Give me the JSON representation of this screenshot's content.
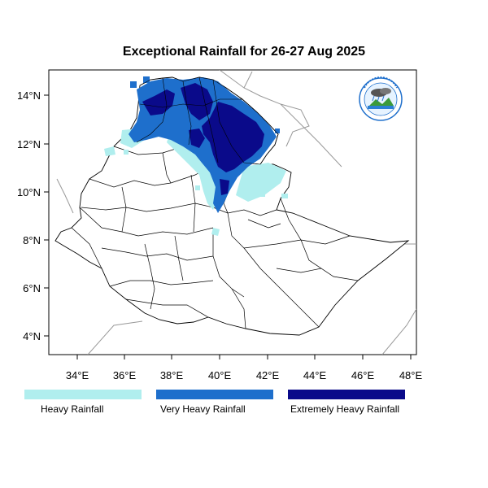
{
  "title": "Exceptional Rainfall for 26-27 Aug 2025",
  "axes": {
    "x_ticks": [
      "34°E",
      "36°E",
      "38°E",
      "40°E",
      "42°E",
      "44°E",
      "46°E",
      "48°E"
    ],
    "y_ticks": [
      "14°N",
      "12°N",
      "10°N",
      "8°N",
      "6°N",
      "4°N"
    ],
    "lon_range": [
      32.8,
      48.2
    ],
    "lat_range": [
      3.3,
      15.0
    ]
  },
  "legend": [
    {
      "label": "Heavy Rainfall",
      "color": "#b0eeee"
    },
    {
      "label": "Very Heavy Rainfall",
      "color": "#1e6fcc"
    },
    {
      "label": "Extremely Heavy Rainfall",
      "color": "#0a0a8a"
    }
  ],
  "logo": {
    "icon": "meteorology-agency-logo-icon"
  }
}
